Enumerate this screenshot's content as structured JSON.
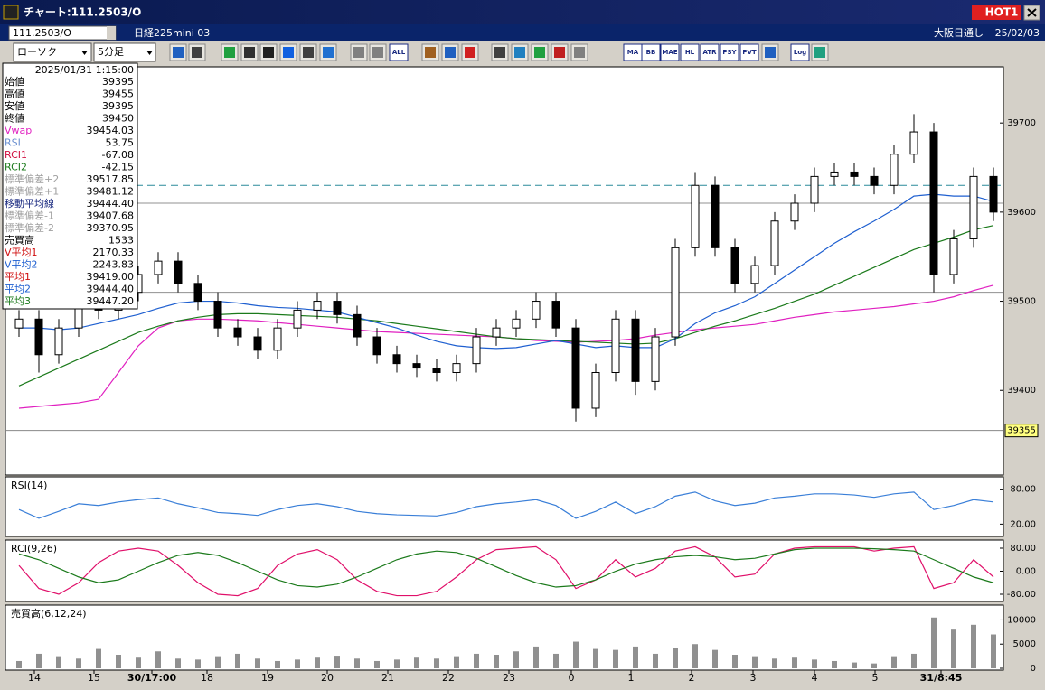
{
  "window": {
    "title": "チャート:111.2503/O",
    "hot": "HOT1",
    "symbol": "111.2503/O",
    "name": "日経225mini 03",
    "exchange": "大阪日通し",
    "date": "25/02/03"
  },
  "toolbar": {
    "chart_type": "ローソク",
    "interval": "5分足",
    "buttons": [
      "ALL",
      "MA",
      "BB",
      "MAE",
      "HL",
      "ATR",
      "PSY",
      "PVT",
      "Log"
    ]
  },
  "info": {
    "timestamp": "2025/01/31 1:15:00",
    "rows": [
      {
        "label": "始値",
        "value": "39395",
        "color": "#000000"
      },
      {
        "label": "高値",
        "value": "39455",
        "color": "#000000"
      },
      {
        "label": "安値",
        "value": "39395",
        "color": "#000000"
      },
      {
        "label": "終値",
        "value": "39450",
        "color": "#000000"
      },
      {
        "label": "Vwap",
        "value": "39454.03",
        "color": "#e020c0"
      },
      {
        "label": "RSI",
        "value": "53.75",
        "color": "#6a8fd0"
      },
      {
        "label": "RCI1",
        "value": "-67.08",
        "color": "#d01040"
      },
      {
        "label": "RCI2",
        "value": "-42.15",
        "color": "#1b7a1b"
      },
      {
        "label": "標準偏差+2",
        "value": "39517.85",
        "color": "#a0a0a0"
      },
      {
        "label": "標準偏差+1",
        "value": "39481.12",
        "color": "#a0a0a0"
      },
      {
        "label": "移動平均線",
        "value": "39444.40",
        "color": "#1a2a80"
      },
      {
        "label": "標準偏差-1",
        "value": "39407.68",
        "color": "#a0a0a0"
      },
      {
        "label": "標準偏差-2",
        "value": "39370.95",
        "color": "#a0a0a0"
      },
      {
        "label": "売買高",
        "value": "1533",
        "color": "#000000"
      },
      {
        "label": "V平均1",
        "value": "2170.33",
        "color": "#d01010"
      },
      {
        "label": "V平均2",
        "value": "2243.83",
        "color": "#1e5fd0"
      },
      {
        "label": "平均1",
        "value": "39419.00",
        "color": "#d01010"
      },
      {
        "label": "平均2",
        "value": "39444.40",
        "color": "#1e5fd0"
      },
      {
        "label": "平均3",
        "value": "39447.20",
        "color": "#1b7a1b"
      }
    ]
  },
  "time_axis": [
    "14",
    "15",
    "30/17:00",
    "18",
    "19",
    "20",
    "21",
    "22",
    "23",
    "0",
    "1",
    "2",
    "3",
    "4",
    "5",
    "31/8:45"
  ],
  "chart_data": [
    {
      "type": "candlestick",
      "ylim": [
        39306,
        39762
      ],
      "yticks": [
        39400,
        39500,
        39600,
        39700
      ],
      "open": [
        39470,
        39480,
        39440,
        39470,
        39500,
        39490,
        39510,
        39530,
        39545,
        39520,
        39500,
        39470,
        39460,
        39445,
        39470,
        39490,
        39500,
        39485,
        39460,
        39440,
        39430,
        39425,
        39420,
        39430,
        39460,
        39470,
        39480,
        39500,
        39470,
        39380,
        39420,
        39480,
        39410,
        39460,
        39560,
        39630,
        39560,
        39520,
        39540,
        39590,
        39610,
        39640,
        39645,
        39640,
        39630,
        39665,
        39690,
        39530,
        39570,
        39640
      ],
      "high": [
        39490,
        39490,
        39480,
        39510,
        39510,
        39520,
        39540,
        39555,
        39555,
        39530,
        39510,
        39480,
        39470,
        39480,
        39500,
        39510,
        39510,
        39495,
        39470,
        39450,
        39440,
        39435,
        39440,
        39470,
        39480,
        39490,
        39510,
        39510,
        39480,
        39430,
        39490,
        39490,
        39470,
        39570,
        39645,
        39640,
        39570,
        39550,
        39600,
        39620,
        39650,
        39655,
        39655,
        39650,
        39675,
        39710,
        39700,
        39580,
        39650,
        39650
      ],
      "low": [
        39460,
        39420,
        39430,
        39460,
        39480,
        39480,
        39500,
        39520,
        39510,
        39490,
        39460,
        39450,
        39435,
        39435,
        39460,
        39480,
        39475,
        39450,
        39430,
        39420,
        39415,
        39410,
        39410,
        39420,
        39450,
        39460,
        39470,
        39460,
        39365,
        39370,
        39410,
        39395,
        39400,
        39450,
        39550,
        39550,
        39510,
        39510,
        39530,
        39580,
        39600,
        39630,
        39630,
        39620,
        39620,
        39655,
        39510,
        39520,
        39560,
        39590
      ],
      "close": [
        39480,
        39440,
        39470,
        39500,
        39490,
        39510,
        39530,
        39545,
        39520,
        39500,
        39470,
        39460,
        39445,
        39470,
        39490,
        39500,
        39485,
        39460,
        39440,
        39430,
        39425,
        39420,
        39430,
        39460,
        39470,
        39480,
        39500,
        39470,
        39380,
        39420,
        39480,
        39410,
        39460,
        39560,
        39630,
        39560,
        39520,
        39540,
        39590,
        39610,
        39640,
        39645,
        39640,
        39630,
        39665,
        39690,
        39530,
        39570,
        39640,
        39600
      ],
      "up_color": "#ffffff",
      "down_color": "#000000",
      "series": [
        {
          "color": "#e020c0",
          "values": [
            39380,
            39382,
            39384,
            39386,
            39390,
            39420,
            39450,
            39470,
            39478,
            39480,
            39480,
            39479,
            39478,
            39476,
            39474,
            39472,
            39470,
            39468,
            39466,
            39465,
            39464,
            39463,
            39462,
            39461,
            39460,
            39458,
            39456,
            39455,
            39454,
            39455,
            39456,
            39458,
            39462,
            39465,
            39468,
            39470,
            39472,
            39474,
            39478,
            39482,
            39485,
            39488,
            39490,
            39492,
            39494,
            39497,
            39500,
            39505,
            39512,
            39518
          ]
        },
        {
          "color": "#1b7a1b",
          "values": [
            39405,
            39415,
            39425,
            39435,
            39445,
            39455,
            39465,
            39472,
            39478,
            39482,
            39485,
            39486,
            39486,
            39485,
            39484,
            39483,
            39482,
            39480,
            39478,
            39475,
            39472,
            39469,
            39466,
            39463,
            39460,
            39458,
            39457,
            39456,
            39455,
            39454,
            39453,
            39452,
            39453,
            39458,
            39465,
            39472,
            39478,
            39485,
            39492,
            39500,
            39508,
            39518,
            39528,
            39538,
            39548,
            39558,
            39565,
            39572,
            39580,
            39585
          ]
        },
        {
          "color": "#1e5fd0",
          "values": [
            39470,
            39470,
            39468,
            39470,
            39475,
            39480,
            39485,
            39492,
            39498,
            39500,
            39500,
            39498,
            39495,
            39493,
            39492,
            39490,
            39488,
            39482,
            39476,
            39470,
            39462,
            39455,
            39450,
            39448,
            39447,
            39448,
            39452,
            39456,
            39452,
            39448,
            39450,
            39448,
            39448,
            39458,
            39475,
            39487,
            39495,
            39505,
            39520,
            39535,
            39550,
            39565,
            39578,
            39590,
            39603,
            39618,
            39620,
            39618,
            39618,
            39612
          ]
        }
      ],
      "levels": [
        {
          "value": 39630,
          "dashed": true,
          "color": "#2a8a9a"
        },
        {
          "value": 39610,
          "dashed": false,
          "color": "#909090"
        },
        {
          "value": 39510,
          "dashed": false,
          "color": "#909090"
        }
      ],
      "price_marker": 39355
    },
    {
      "type": "line",
      "title": "RSI(14)",
      "ylim": [
        2,
        98
      ],
      "yticks": [
        {
          "value": 80,
          "label": "80.00"
        },
        {
          "value": 20,
          "label": "20.00"
        }
      ],
      "series": [
        {
          "color": "#3a7fd8",
          "values": [
            45,
            30,
            42,
            55,
            52,
            58,
            62,
            65,
            55,
            48,
            40,
            38,
            35,
            45,
            52,
            55,
            50,
            42,
            38,
            36,
            35,
            34,
            40,
            50,
            55,
            58,
            62,
            52,
            30,
            42,
            58,
            38,
            50,
            68,
            75,
            60,
            52,
            56,
            65,
            68,
            72,
            72,
            70,
            66,
            72,
            75,
            45,
            52,
            62,
            58
          ]
        }
      ]
    },
    {
      "type": "line",
      "title": "RCI(9,26)",
      "ylim": [
        -102,
        102
      ],
      "yticks": [
        {
          "value": 80,
          "label": "80.00"
        },
        {
          "value": 0,
          "label": "0.00"
        },
        {
          "value": -80,
          "label": "-80.00"
        }
      ],
      "series": [
        {
          "color": "#e0106a",
          "values": [
            20,
            -60,
            -80,
            -40,
            30,
            70,
            80,
            70,
            20,
            -40,
            -80,
            -85,
            -60,
            20,
            60,
            75,
            40,
            -30,
            -70,
            -85,
            -85,
            -70,
            -20,
            40,
            75,
            80,
            85,
            40,
            -60,
            -30,
            40,
            -20,
            10,
            70,
            85,
            50,
            -20,
            -10,
            60,
            80,
            85,
            85,
            85,
            70,
            80,
            85,
            -60,
            -40,
            40,
            -20
          ]
        },
        {
          "color": "#1b7a1b",
          "values": [
            60,
            40,
            10,
            -20,
            -40,
            -30,
            0,
            30,
            55,
            65,
            55,
            30,
            0,
            -30,
            -50,
            -55,
            -45,
            -20,
            10,
            40,
            60,
            70,
            65,
            45,
            15,
            -15,
            -40,
            -55,
            -50,
            -30,
            0,
            25,
            40,
            50,
            55,
            50,
            40,
            45,
            60,
            75,
            80,
            80,
            80,
            78,
            75,
            70,
            40,
            10,
            -20,
            -40
          ]
        }
      ]
    },
    {
      "type": "bar",
      "title": "売買高(6,12,24)",
      "ylim": [
        0,
        12700
      ],
      "yticks": [
        10000,
        5000,
        0
      ],
      "color": "#909090",
      "values": [
        1500,
        3000,
        2500,
        2000,
        4000,
        2800,
        2200,
        3500,
        2000,
        1800,
        2500,
        3000,
        2000,
        1500,
        1800,
        2200,
        2600,
        2000,
        1500,
        1800,
        2200,
        2000,
        2500,
        3000,
        2800,
        3500,
        4500,
        3000,
        5500,
        4000,
        3800,
        4500,
        3000,
        4200,
        5000,
        3800,
        2800,
        2500,
        2000,
        2200,
        1800,
        1500,
        1200,
        1000,
        2500,
        3000,
        10500,
        8000,
        9000,
        7000
      ]
    }
  ]
}
